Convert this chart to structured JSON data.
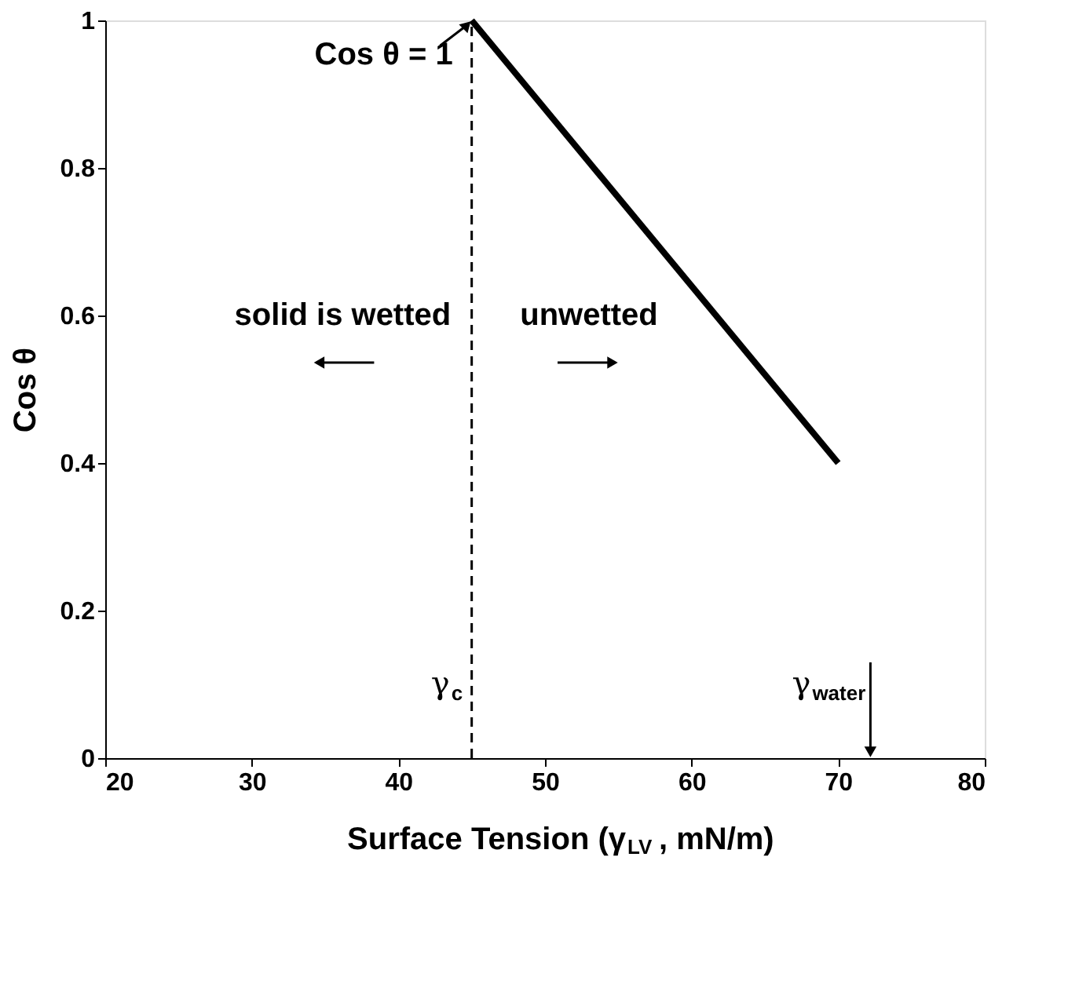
{
  "chart_data": {
    "type": "line",
    "x": [
      45,
      70
    ],
    "values": [
      1,
      0.4
    ],
    "color": "#000000",
    "xlabel": "Surface Tension (γ$_{LV}$, mN/m)",
    "ylabel": "Cos θ",
    "xlim": [
      20,
      80
    ],
    "xticks": [
      20,
      30,
      40,
      50,
      60,
      70,
      80
    ],
    "ylim": [
      0,
      1
    ],
    "yticks": [
      0,
      0.2,
      0.4,
      0.6,
      0.8,
      1
    ],
    "grid": false,
    "marker": "none",
    "line_style": "solid",
    "ref_lines": [
      {
        "axis": "x",
        "value": 45,
        "label": null,
        "line_style": "dashed",
        "color": "#000000"
      }
    ],
    "annotations": [
      {
        "text": "Cos θ = 1",
        "x": 45,
        "y": 1
      },
      "solid is wetted",
      "unwetted",
      {
        "text": "γ$_{c}$",
        "x": 45,
        "y": 0.1
      },
      "γ$_{water}$"
    ]
  }
}
